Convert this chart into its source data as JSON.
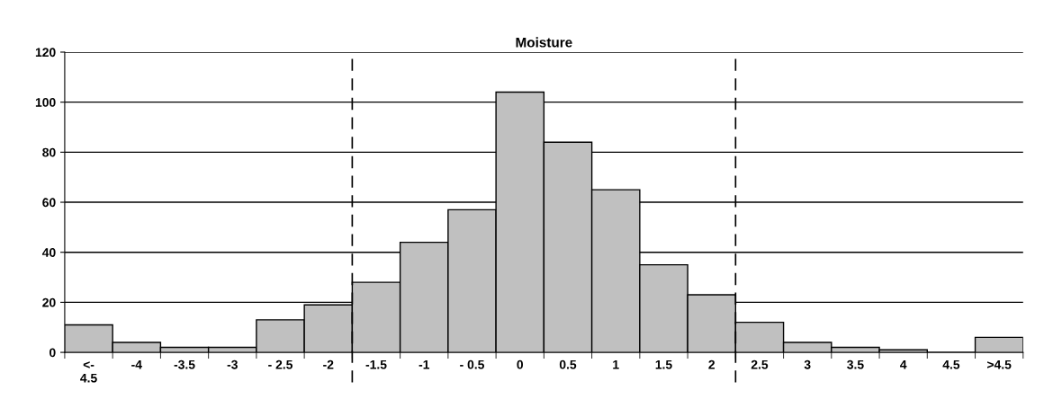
{
  "chart_data": {
    "type": "bar",
    "title": "Moisture",
    "categories": [
      "<-\n4.5",
      "-4",
      "-3.5",
      "-3",
      "- 2.5",
      "-2",
      "-1.5",
      "-1",
      "- 0.5",
      "0",
      "0.5",
      "1",
      "1.5",
      "2",
      "2.5",
      "3",
      "3.5",
      "4",
      "4.5",
      ">4.5"
    ],
    "values": [
      11,
      4,
      2,
      2,
      13,
      19,
      28,
      44,
      57,
      104,
      84,
      65,
      35,
      23,
      12,
      4,
      2,
      1,
      0,
      6
    ],
    "color": "#c0c0c0",
    "ylim": [
      0,
      120
    ],
    "yticks": [
      0,
      20,
      40,
      60,
      80,
      100,
      120
    ],
    "grid": "y"
  }
}
